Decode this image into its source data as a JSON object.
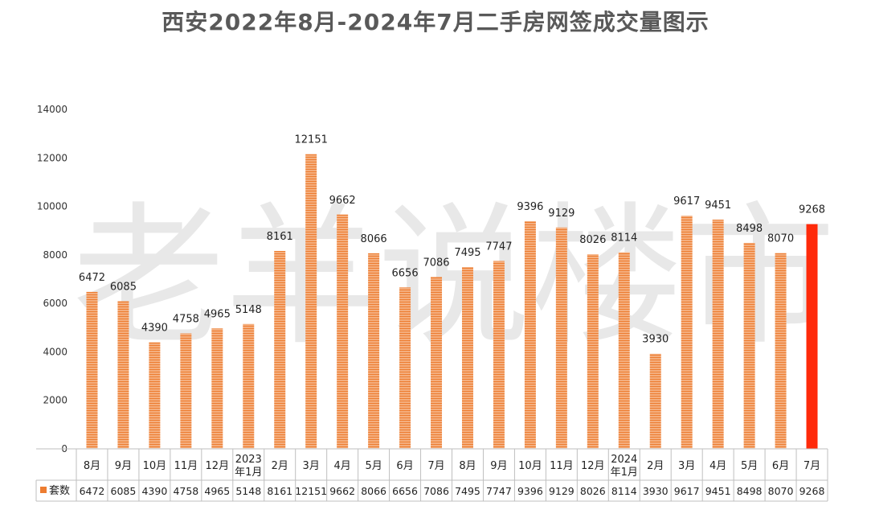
{
  "title": "西安2022年8月-2024年7月二手房网签成交量图示",
  "watermark": "老羊说楼市",
  "chart_data": {
    "type": "bar",
    "title": "西安2022年8月-2024年7月二手房网签成交量图示",
    "categories": [
      "8月",
      "9月",
      "10月",
      "11月",
      "12月",
      "2023\n年1月",
      "2月",
      "3月",
      "4月",
      "5月",
      "6月",
      "7月",
      "8月",
      "9月",
      "10月",
      "11月",
      "12月",
      "2024\n年1月",
      "2月",
      "3月",
      "4月",
      "5月",
      "6月",
      "7月"
    ],
    "series": [
      {
        "name": "套数",
        "values": [
          6472,
          6085,
          4390,
          4758,
          4965,
          5148,
          8161,
          12151,
          9662,
          8066,
          6656,
          7086,
          7495,
          7747,
          9396,
          9129,
          8026,
          8114,
          3930,
          9617,
          9451,
          8498,
          8070,
          9268
        ]
      }
    ],
    "ylim": [
      0,
      14000
    ],
    "yticks": [
      0,
      2000,
      4000,
      6000,
      8000,
      10000,
      12000,
      14000
    ],
    "gridlines": false,
    "data_table": true,
    "legend_position": "data-table-row",
    "colors": {
      "bar": "#ED7D31",
      "bar_stripe": "#FBE0CC",
      "highlight_bar": "#FF2A0A",
      "table_border": "#BFBFBF"
    }
  }
}
